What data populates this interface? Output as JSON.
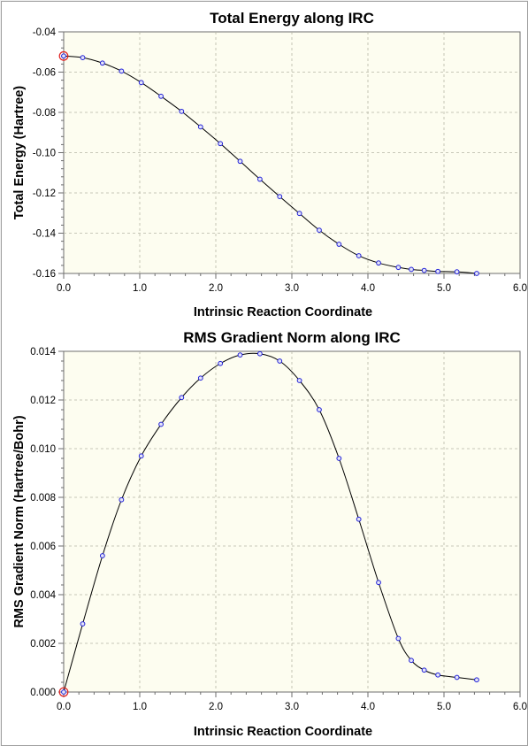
{
  "chart_data": [
    {
      "type": "line",
      "title": "Total Energy along IRC",
      "xlabel": "Intrinsic Reaction Coordinate",
      "ylabel": "Total Energy (Hartree)",
      "xlim": [
        0.0,
        6.0
      ],
      "ylim": [
        -0.16,
        -0.04
      ],
      "xticks": [
        "0.0",
        "1.0",
        "2.0",
        "3.0",
        "4.0",
        "5.0",
        "6.0"
      ],
      "yticks": [
        "-0.04",
        "-0.06",
        "-0.08",
        "-0.10",
        "-0.12",
        "-0.14",
        "-0.16"
      ],
      "grid": true,
      "highlight_index": 0,
      "series": [
        {
          "x": [
            0.0,
            0.25,
            0.51,
            0.76,
            1.02,
            1.28,
            1.55,
            1.8,
            2.06,
            2.32,
            2.58,
            2.84,
            3.1,
            3.36,
            3.62,
            3.88,
            4.14,
            4.4,
            4.57,
            4.74,
            4.92,
            5.17,
            5.43
          ],
          "y": [
            -0.052,
            -0.0528,
            -0.0555,
            -0.0595,
            -0.0652,
            -0.072,
            -0.0795,
            -0.0872,
            -0.0955,
            -0.1043,
            -0.1132,
            -0.1218,
            -0.1302,
            -0.1385,
            -0.1455,
            -0.1512,
            -0.1548,
            -0.157,
            -0.158,
            -0.1585,
            -0.159,
            -0.1592,
            -0.16
          ]
        }
      ]
    },
    {
      "type": "line",
      "title": "RMS Gradient Norm along IRC",
      "xlabel": "Intrinsic Reaction Coordinate",
      "ylabel": "RMS Gradient Norm (Hartree/Bohr)",
      "xlim": [
        0.0,
        6.0
      ],
      "ylim": [
        0.0,
        0.014
      ],
      "xticks": [
        "0.0",
        "1.0",
        "2.0",
        "3.0",
        "4.0",
        "5.0",
        "6.0"
      ],
      "yticks": [
        "0.014",
        "0.012",
        "0.010",
        "0.008",
        "0.006",
        "0.004",
        "0.002",
        "0.000"
      ],
      "grid": true,
      "highlight_index": 0,
      "series": [
        {
          "x": [
            0.0,
            0.25,
            0.51,
            0.76,
            1.02,
            1.28,
            1.55,
            1.8,
            2.06,
            2.32,
            2.58,
            2.84,
            3.1,
            3.36,
            3.62,
            3.88,
            4.14,
            4.4,
            4.57,
            4.74,
            4.92,
            5.17,
            5.43
          ],
          "y": [
            0.0,
            0.0028,
            0.0056,
            0.0079,
            0.0097,
            0.011,
            0.0121,
            0.0129,
            0.0135,
            0.01385,
            0.0139,
            0.0136,
            0.0128,
            0.0116,
            0.0096,
            0.0071,
            0.0045,
            0.0022,
            0.0013,
            0.0009,
            0.0007,
            0.0006,
            0.0005
          ]
        }
      ]
    }
  ]
}
